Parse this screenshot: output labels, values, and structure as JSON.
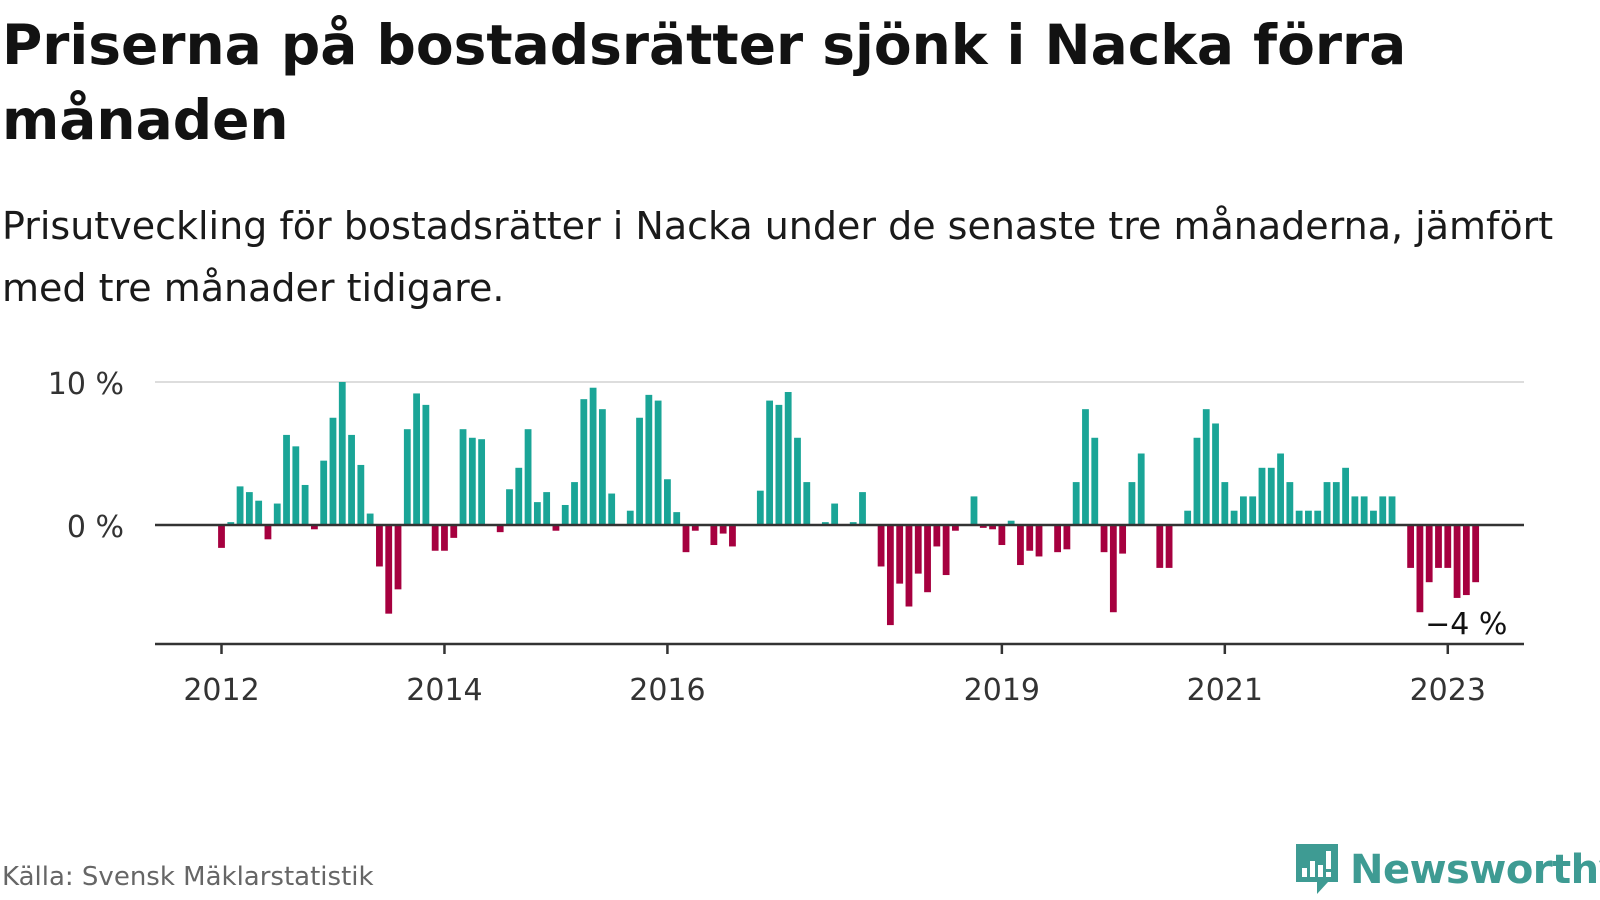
{
  "title": "Priserna på bostadsrätter sjönk i Nacka förra månaden",
  "subtitle": "Prisutveckling för bostadsrätter i Nacka under de senaste tre månaderna, jämfört med tre månader tidigare.",
  "source": "Källa: Svensk Mäklarstatistik",
  "brand": {
    "name": "Newsworthy",
    "color": "#3e9b93",
    "icon": "newsworthy-logo-icon"
  },
  "colors": {
    "positive": "#1aa597",
    "negative": "#a6003f",
    "grid": "#dddddd",
    "baseline": "#333333"
  },
  "chart_data": {
    "type": "bar",
    "title": "",
    "xlabel": "",
    "ylabel": "",
    "ylim": [
      -8.5,
      10
    ],
    "yticks": [
      {
        "value": 0,
        "label": "0 %"
      },
      {
        "value": 10,
        "label": "10 %"
      }
    ],
    "xticks": [
      {
        "index": 0,
        "label": "2012"
      },
      {
        "index": 24,
        "label": "2014"
      },
      {
        "index": 48,
        "label": "2016"
      },
      {
        "index": 84,
        "label": "2019"
      },
      {
        "index": 108,
        "label": "2021"
      },
      {
        "index": 132,
        "label": "2023"
      }
    ],
    "start": "2012-01",
    "annotation": {
      "index": 133,
      "label": "−4 %"
    },
    "values": [
      -1.6,
      0.2,
      2.7,
      2.3,
      1.7,
      -1.0,
      1.5,
      6.3,
      5.5,
      2.8,
      -0.3,
      4.5,
      7.5,
      10.0,
      6.3,
      4.2,
      0.8,
      -2.9,
      -6.2,
      -4.5,
      6.7,
      9.2,
      8.4,
      -1.8,
      -1.8,
      -0.9,
      6.7,
      6.1,
      6.0,
      0.0,
      -0.5,
      2.5,
      4.0,
      6.7,
      1.6,
      2.3,
      -0.4,
      1.4,
      3.0,
      8.8,
      9.6,
      8.1,
      2.2,
      0.0,
      1.0,
      7.5,
      9.1,
      8.7,
      3.2,
      0.9,
      -1.9,
      -0.4,
      0.0,
      -1.4,
      -0.6,
      -1.5,
      0.0,
      0.0,
      2.4,
      8.7,
      8.4,
      9.3,
      6.1,
      3.0,
      0.0,
      0.2,
      1.5,
      0.0,
      0.2,
      2.3,
      0.0,
      -2.9,
      -7.0,
      -4.1,
      -5.7,
      -3.4,
      -4.7,
      -1.5,
      -3.5,
      -0.4,
      0.0,
      2.0,
      -0.2,
      -0.3,
      -1.4,
      0.3,
      -2.8,
      -1.8,
      -2.2,
      0.0,
      -1.9,
      -1.7,
      3.0,
      8.1,
      6.1,
      -1.9,
      -6.1,
      -2.0,
      3.0,
      5.0,
      0.0,
      -3.0,
      -3.0,
      0.0,
      1.0,
      6.1,
      8.1,
      7.1,
      3.0,
      1.0,
      2.0,
      2.0,
      4.0,
      4.0,
      5.0,
      3.0,
      1.0,
      1.0,
      1.0,
      3.0,
      3.0,
      4.0,
      2.0,
      2.0,
      1.0,
      2.0,
      2.0,
      0.0,
      -3.0,
      -6.1,
      -4.0,
      -3.0,
      -3.0,
      -5.1,
      -4.9,
      -4.0
    ]
  }
}
